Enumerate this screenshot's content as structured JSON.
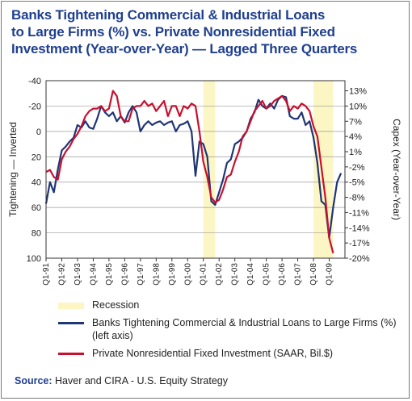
{
  "title_lines": [
    "Banks Tightening Commercial & Industrial Loans",
    "to Large Firms (%)  vs. Private Nonresidential Fixed",
    "Investment (Year-over-Year) — Lagged Three Quarters"
  ],
  "source": {
    "label": "Source:",
    "text": "Haver and CIRA - U.S. Equity Strategy"
  },
  "colors": {
    "title": "#1f3f8f",
    "loans": "#1f3575",
    "capex": "#c8102e",
    "recession": "#fbf6c4"
  },
  "chart_data": {
    "type": "line",
    "title": "Banks Tightening Commercial & Industrial Loans to Large Firms (%)  vs. Private Nonresidential Fixed Investment (Year-over-Year) — Lagged Three Quarters",
    "xlabel": "",
    "ylabel": "Tightening — Inverted",
    "y2label": "Capex (Year-over-Year)",
    "x_ticks": [
      "Q1-91",
      "Q1-92",
      "Q1-93",
      "Q1-94",
      "Q1-95",
      "Q1-96",
      "Q1-97",
      "Q1-98",
      "Q1-99",
      "Q1-00",
      "Q1-01",
      "Q1-02",
      "Q1-03",
      "Q1-04",
      "Q1-05",
      "Q1-06",
      "Q1-07",
      "Q1-08",
      "Q1-09"
    ],
    "x_range": [
      1991.0,
      2010.0
    ],
    "ylim_left": [
      100,
      -40
    ],
    "left_ticks": [
      "-40",
      "-20",
      "0",
      "20",
      "40",
      "60",
      "80",
      "100"
    ],
    "ylim_right": [
      -20,
      15
    ],
    "right_ticks": [
      "13%",
      "10%",
      "7%",
      "4%",
      "1%",
      "-2%",
      "-5%",
      "-8%",
      "-11%",
      "-14%",
      "-17%",
      "-20%"
    ],
    "grid": true,
    "recessions": [
      [
        2001.0,
        2001.75
      ],
      [
        2008.0,
        2009.25
      ]
    ],
    "series": [
      {
        "name": "Banks Tightening Commercial & Industrial Loans to Large Firms (%) (left axis)",
        "axis": "left",
        "x": [
          1991.0,
          1991.25,
          1991.5,
          1991.75,
          1992.0,
          1992.25,
          1992.5,
          1992.75,
          1993.0,
          1993.25,
          1993.5,
          1993.75,
          1994.0,
          1994.25,
          1994.5,
          1994.75,
          1995.0,
          1995.25,
          1995.5,
          1995.75,
          1996.0,
          1996.25,
          1996.5,
          1996.75,
          1997.0,
          1997.25,
          1997.5,
          1997.75,
          1998.0,
          1998.25,
          1998.5,
          1998.75,
          1999.0,
          1999.25,
          1999.5,
          1999.75,
          2000.0,
          2000.25,
          2000.5,
          2000.75,
          2001.0,
          2001.25,
          2001.5,
          2001.75,
          2002.0,
          2002.25,
          2002.5,
          2002.75,
          2003.0,
          2003.25,
          2003.5,
          2003.75,
          2004.0,
          2004.25,
          2004.5,
          2004.75,
          2005.0,
          2005.25,
          2005.5,
          2005.75,
          2006.0,
          2006.25,
          2006.5,
          2006.75,
          2007.0,
          2007.25,
          2007.5,
          2007.75,
          2008.0,
          2008.25,
          2008.5,
          2008.75,
          2009.0,
          2009.25,
          2009.5,
          2009.75
        ],
        "y": [
          57,
          40,
          48,
          30,
          15,
          12,
          8,
          5,
          -5,
          -3,
          -8,
          -3,
          -2,
          -10,
          -20,
          -15,
          -12,
          -15,
          -8,
          -12,
          -7,
          -15,
          -20,
          -15,
          0,
          -5,
          -8,
          -5,
          -7,
          -8,
          -5,
          -7,
          -8,
          0,
          -5,
          -6,
          -8,
          0,
          35,
          8,
          10,
          20,
          55,
          58,
          48,
          38,
          25,
          22,
          10,
          8,
          5,
          0,
          -10,
          -15,
          -25,
          -20,
          -18,
          -22,
          -18,
          -25,
          -28,
          -27,
          -12,
          -10,
          -10,
          -15,
          -5,
          -8,
          5,
          25,
          55,
          58,
          84,
          60,
          40,
          33
        ],
        "color": "#1f3575"
      },
      {
        "name": "Private Nonresidential Fixed Investment (SAAR, Bil.$)",
        "axis": "right",
        "x": [
          1991.0,
          1991.25,
          1991.5,
          1991.75,
          1992.0,
          1992.25,
          1992.5,
          1992.75,
          1993.0,
          1993.25,
          1993.5,
          1993.75,
          1994.0,
          1994.25,
          1994.5,
          1994.75,
          1995.0,
          1995.25,
          1995.5,
          1995.75,
          1996.0,
          1996.25,
          1996.5,
          1996.75,
          1997.0,
          1997.25,
          1997.5,
          1997.75,
          1998.0,
          1998.25,
          1998.5,
          1998.75,
          1999.0,
          1999.25,
          1999.5,
          1999.75,
          2000.0,
          2000.25,
          2000.5,
          2000.75,
          2001.0,
          2001.25,
          2001.5,
          2001.75,
          2002.0,
          2002.25,
          2002.5,
          2002.75,
          2003.0,
          2003.25,
          2003.5,
          2003.75,
          2004.0,
          2004.25,
          2004.5,
          2004.75,
          2005.0,
          2005.25,
          2005.5,
          2005.75,
          2006.0,
          2006.25,
          2006.5,
          2006.75,
          2007.0,
          2007.25,
          2007.5,
          2007.75,
          2008.0,
          2008.25,
          2008.5,
          2008.75,
          2009.0,
          2009.25
        ],
        "y": [
          -3,
          -2.6,
          -4,
          -4.5,
          -0.5,
          1,
          2,
          3.5,
          4.5,
          6,
          8,
          9,
          9.5,
          9.5,
          10,
          9,
          9.5,
          13,
          12,
          8,
          7,
          7,
          9.5,
          10,
          10,
          11,
          10,
          10.5,
          9,
          10,
          11,
          8,
          10,
          10,
          8,
          10,
          9.5,
          10.5,
          10,
          5,
          -1,
          -4,
          -8,
          -9,
          -8.5,
          -6.5,
          -4,
          -3.5,
          -1,
          1,
          4,
          5,
          7,
          9,
          10,
          11,
          9.5,
          10,
          11,
          11.5,
          12,
          11,
          9,
          10,
          9.5,
          10.5,
          10,
          9,
          6,
          4,
          -2,
          -8,
          -16,
          -19
        ],
        "color": "#c8102e"
      }
    ]
  },
  "legend": {
    "recession": "Recession",
    "loans": "Banks Tightening Commercial & Industrial Loans to Large Firms (%) (left axis)",
    "capex": "Private Nonresidential Fixed Investment (SAAR, Bil.$)"
  }
}
